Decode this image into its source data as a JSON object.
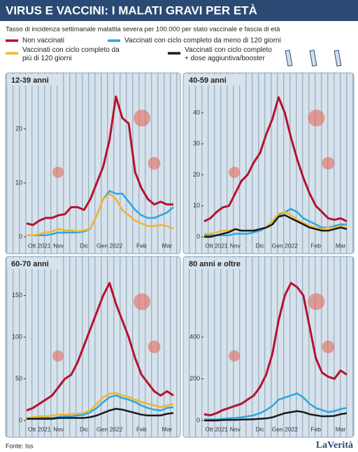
{
  "header": {
    "title": "VIRUS E VACCINI: I MALATI GRAVI PER ETÀ",
    "subtitle": "Tasso di incidenza settimanale malattia severa per 100.000 per stato vaccinale e fascia di età"
  },
  "legend": [
    {
      "name": "Non vaccinati",
      "color": "#b5122f"
    },
    {
      "name": "Vaccinati con ciclo completo da meno di 120 giorni",
      "color": "#2aa7df"
    },
    {
      "name": "Vaccinati con ciclo completo da più di 120 giorni",
      "color": "#f2b52c"
    },
    {
      "name": "Vaccinati con ciclo completo + dose aggiuntiva/booster",
      "color": "#1a1a1a"
    }
  ],
  "chart_data": [
    {
      "type": "line",
      "title": "12-39 anni",
      "categories": [
        null,
        null,
        "Ott 2021",
        null,
        null,
        "Nov",
        null,
        null,
        null,
        "Dic",
        null,
        null,
        null,
        "Gen 2022",
        null,
        null,
        null,
        null,
        "Feb",
        null,
        null,
        null,
        "Mar",
        null
      ],
      "ylim": [
        0,
        27
      ],
      "yticks": [
        0,
        10,
        20
      ],
      "series": [
        {
          "values": [
            2.5,
            2.2,
            3,
            3.5,
            3.5,
            4,
            4.2,
            5.5,
            5.5,
            5,
            7,
            10,
            13,
            18,
            26,
            22,
            21,
            12,
            9,
            7,
            6,
            6.5,
            6,
            6
          ]
        },
        {
          "values": [
            0.3,
            0.3,
            0.3,
            0.3,
            0.5,
            0.8,
            0.8,
            0.8,
            0.8,
            1,
            1.5,
            4,
            7,
            8.5,
            8,
            8,
            6.5,
            5,
            4,
            3.5,
            3.5,
            4,
            4.5,
            5.5
          ]
        },
        {
          "values": [
            0.3,
            0.3,
            0.5,
            0.8,
            1,
            1.5,
            1.2,
            1.2,
            1,
            1.2,
            1.5,
            4,
            7,
            8,
            7,
            5,
            4,
            3,
            2.5,
            2,
            2,
            2.2,
            2,
            1.5
          ]
        },
        {
          "values": [
            null,
            null,
            null,
            null,
            null,
            null,
            null,
            null,
            null,
            null,
            null,
            null,
            null,
            null,
            null,
            null,
            null,
            null,
            null,
            null,
            null,
            null,
            null,
            null
          ]
        }
      ]
    },
    {
      "type": "line",
      "title": "40-59 anni",
      "categories": [
        null,
        null,
        "Ott 2021",
        null,
        null,
        "Nov",
        null,
        null,
        null,
        "Dic",
        null,
        null,
        null,
        "Gen 2022",
        null,
        null,
        null,
        null,
        "Feb",
        null,
        null,
        null,
        "Mar",
        null
      ],
      "ylim": [
        0,
        47
      ],
      "yticks": [
        0,
        10,
        20,
        30,
        40
      ],
      "series": [
        {
          "values": [
            5,
            6,
            8,
            9.5,
            10,
            14,
            18,
            20,
            24,
            27,
            33,
            38,
            45,
            40,
            32,
            25,
            19,
            14,
            10,
            8,
            6,
            5.5,
            6,
            5
          ]
        },
        {
          "values": [
            0.5,
            0.5,
            0.5,
            0.5,
            0.5,
            1,
            1,
            1,
            1.5,
            2,
            3,
            5,
            7,
            8,
            9,
            8,
            6,
            5,
            4,
            3,
            3,
            3.5,
            4,
            4
          ]
        },
        {
          "values": [
            1,
            1,
            1.5,
            2,
            2,
            2.5,
            2,
            2,
            2,
            2.5,
            3,
            5,
            7.5,
            8,
            7,
            5.5,
            4.5,
            3.5,
            3,
            2.5,
            3,
            3,
            3.5,
            3
          ]
        },
        {
          "values": [
            0,
            0,
            0.5,
            1,
            1.5,
            2.5,
            2,
            2,
            2,
            2.5,
            3,
            4,
            6.5,
            7,
            6,
            5,
            4,
            3,
            2.5,
            2,
            2,
            2.5,
            3,
            2.5
          ]
        }
      ]
    },
    {
      "type": "line",
      "title": "60-70 anni",
      "categories": [
        null,
        null,
        "Ott 2021",
        null,
        null,
        "Nov",
        null,
        null,
        null,
        "Dic",
        null,
        null,
        null,
        "Gen 2022",
        null,
        null,
        null,
        null,
        "Feb",
        null,
        null,
        null,
        "Mar",
        null
      ],
      "ylim": [
        0,
        175
      ],
      "yticks": [
        0,
        50,
        100,
        150
      ],
      "series": [
        {
          "values": [
            12,
            15,
            20,
            25,
            30,
            40,
            50,
            55,
            70,
            90,
            110,
            130,
            150,
            165,
            140,
            120,
            100,
            75,
            55,
            45,
            35,
            30,
            35,
            30
          ]
        },
        {
          "values": [
            2,
            2,
            3,
            3,
            3,
            4,
            5,
            5,
            6,
            7,
            10,
            15,
            22,
            28,
            30,
            27,
            25,
            22,
            18,
            15,
            13,
            12,
            15,
            16
          ]
        },
        {
          "values": [
            3,
            4,
            5,
            5,
            6,
            7,
            7,
            8,
            8,
            9,
            12,
            20,
            28,
            32,
            33,
            30,
            28,
            25,
            22,
            20,
            18,
            16,
            18,
            20
          ]
        },
        {
          "values": [
            2,
            2,
            2,
            2,
            2,
            3,
            3,
            3,
            3,
            3,
            4,
            6,
            9,
            12,
            14,
            13,
            11,
            9,
            7,
            6,
            6,
            6,
            8,
            9
          ]
        }
      ]
    },
    {
      "type": "line",
      "title": "80 anni e oltre",
      "categories": [
        null,
        null,
        "Ott 2021",
        null,
        null,
        "Nov",
        null,
        null,
        null,
        "Dic",
        null,
        null,
        null,
        "Gen 2022",
        null,
        null,
        null,
        null,
        "Feb",
        null,
        null,
        null,
        "Mar",
        null
      ],
      "ylim": [
        0,
        700
      ],
      "yticks": [
        0,
        200,
        400
      ],
      "series": [
        {
          "values": [
            30,
            25,
            35,
            50,
            60,
            70,
            80,
            100,
            120,
            160,
            220,
            320,
            480,
            600,
            660,
            640,
            600,
            450,
            300,
            230,
            210,
            200,
            240,
            220
          ]
        },
        {
          "values": [
            5,
            5,
            5,
            8,
            10,
            12,
            15,
            20,
            25,
            35,
            50,
            70,
            100,
            110,
            120,
            130,
            110,
            80,
            60,
            50,
            40,
            45,
            55,
            60
          ]
        },
        {
          "values": [
            null,
            null,
            null,
            null,
            null,
            null,
            null,
            null,
            null,
            null,
            null,
            null,
            null,
            null,
            null,
            null,
            null,
            null,
            null,
            null,
            null,
            null,
            null,
            null
          ]
        },
        {
          "values": [
            0,
            0,
            0,
            2,
            3,
            3,
            4,
            5,
            6,
            8,
            10,
            15,
            25,
            35,
            40,
            45,
            40,
            30,
            25,
            20,
            20,
            22,
            30,
            35
          ]
        }
      ]
    }
  ],
  "footer": {
    "source": "Fonte: Iss",
    "logo": "LaVerità"
  }
}
